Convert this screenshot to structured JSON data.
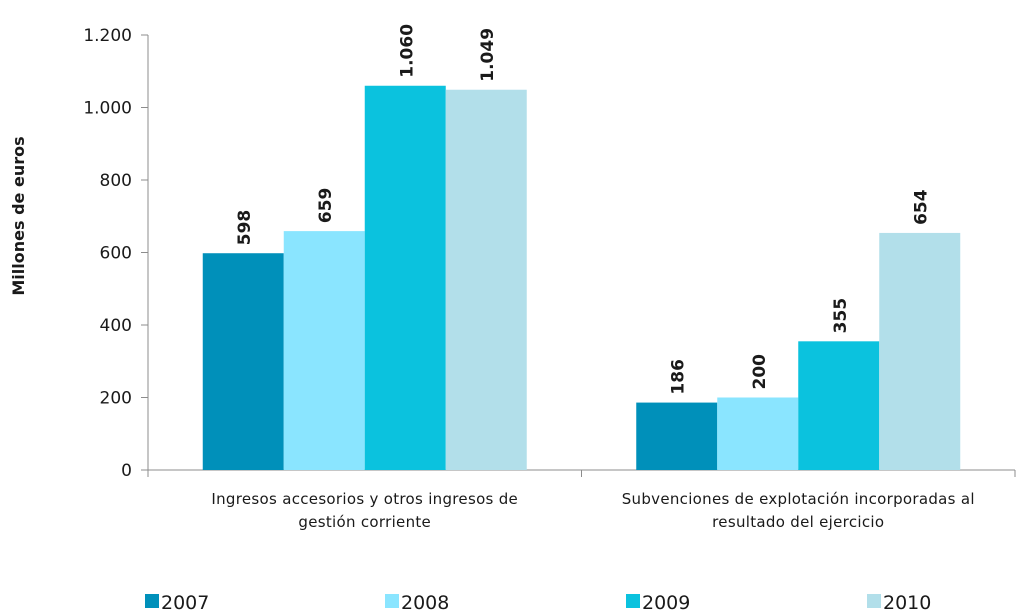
{
  "chart_data": {
    "type": "bar",
    "ylabel": "Millones de euros",
    "ylim": [
      0,
      1200
    ],
    "yticks": [
      0,
      200,
      400,
      600,
      800,
      1000,
      1200
    ],
    "ytick_labels": [
      "0",
      "200",
      "400",
      "600",
      "800",
      "1.000",
      "1.200"
    ],
    "categories": [
      [
        "Ingresos accesorios y otros ingresos de",
        "gestión corriente"
      ],
      [
        "Subvenciones de explotación incorporadas al",
        "resultado del ejercicio"
      ]
    ],
    "series": [
      {
        "name": "2007",
        "color": "#0090BA",
        "values": [
          598,
          186
        ],
        "labels": [
          "598",
          "186"
        ]
      },
      {
        "name": "2008",
        "color": "#8AE5FF",
        "values": [
          659,
          200
        ],
        "labels": [
          "659",
          "200"
        ]
      },
      {
        "name": "2009",
        "color": "#0BC2DE",
        "values": [
          1060,
          355
        ],
        "labels": [
          "1.060",
          "355"
        ]
      },
      {
        "name": "2010",
        "color": "#B2DFEA",
        "values": [
          1049,
          654
        ],
        "labels": [
          "1.049",
          "654"
        ]
      }
    ],
    "grid": false,
    "legend": "bottom"
  }
}
